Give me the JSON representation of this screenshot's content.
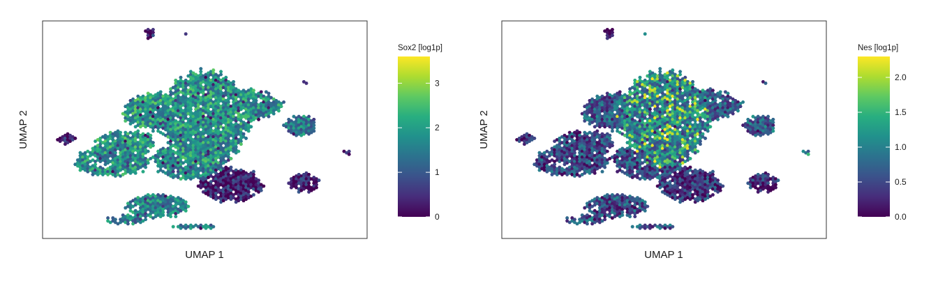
{
  "chart_data": [
    {
      "type": "heatmap",
      "subtype": "hexbin-umap",
      "xlabel": "UMAP 1",
      "ylabel": "UMAP 2",
      "colorbar": {
        "title": "Sox2 [log1p]",
        "range": [
          0,
          3.6
        ],
        "ticks": [
          0,
          1,
          2,
          3
        ],
        "tick_labels": [
          "0",
          "1",
          "2",
          "3"
        ],
        "colormap": "viridis"
      },
      "ticks_shown": false,
      "grid": false
    },
    {
      "type": "heatmap",
      "subtype": "hexbin-umap",
      "xlabel": "UMAP 1",
      "ylabel": "UMAP 2",
      "colorbar": {
        "title": "Nes [log1p]",
        "range": [
          0,
          2.3
        ],
        "ticks": [
          0,
          0.5,
          1,
          1.5,
          2
        ],
        "tick_labels": [
          "0.0",
          "0.5",
          "1.0",
          "1.5",
          "2.0"
        ],
        "colormap": "viridis"
      },
      "ticks_shown": false,
      "grid": false
    }
  ]
}
